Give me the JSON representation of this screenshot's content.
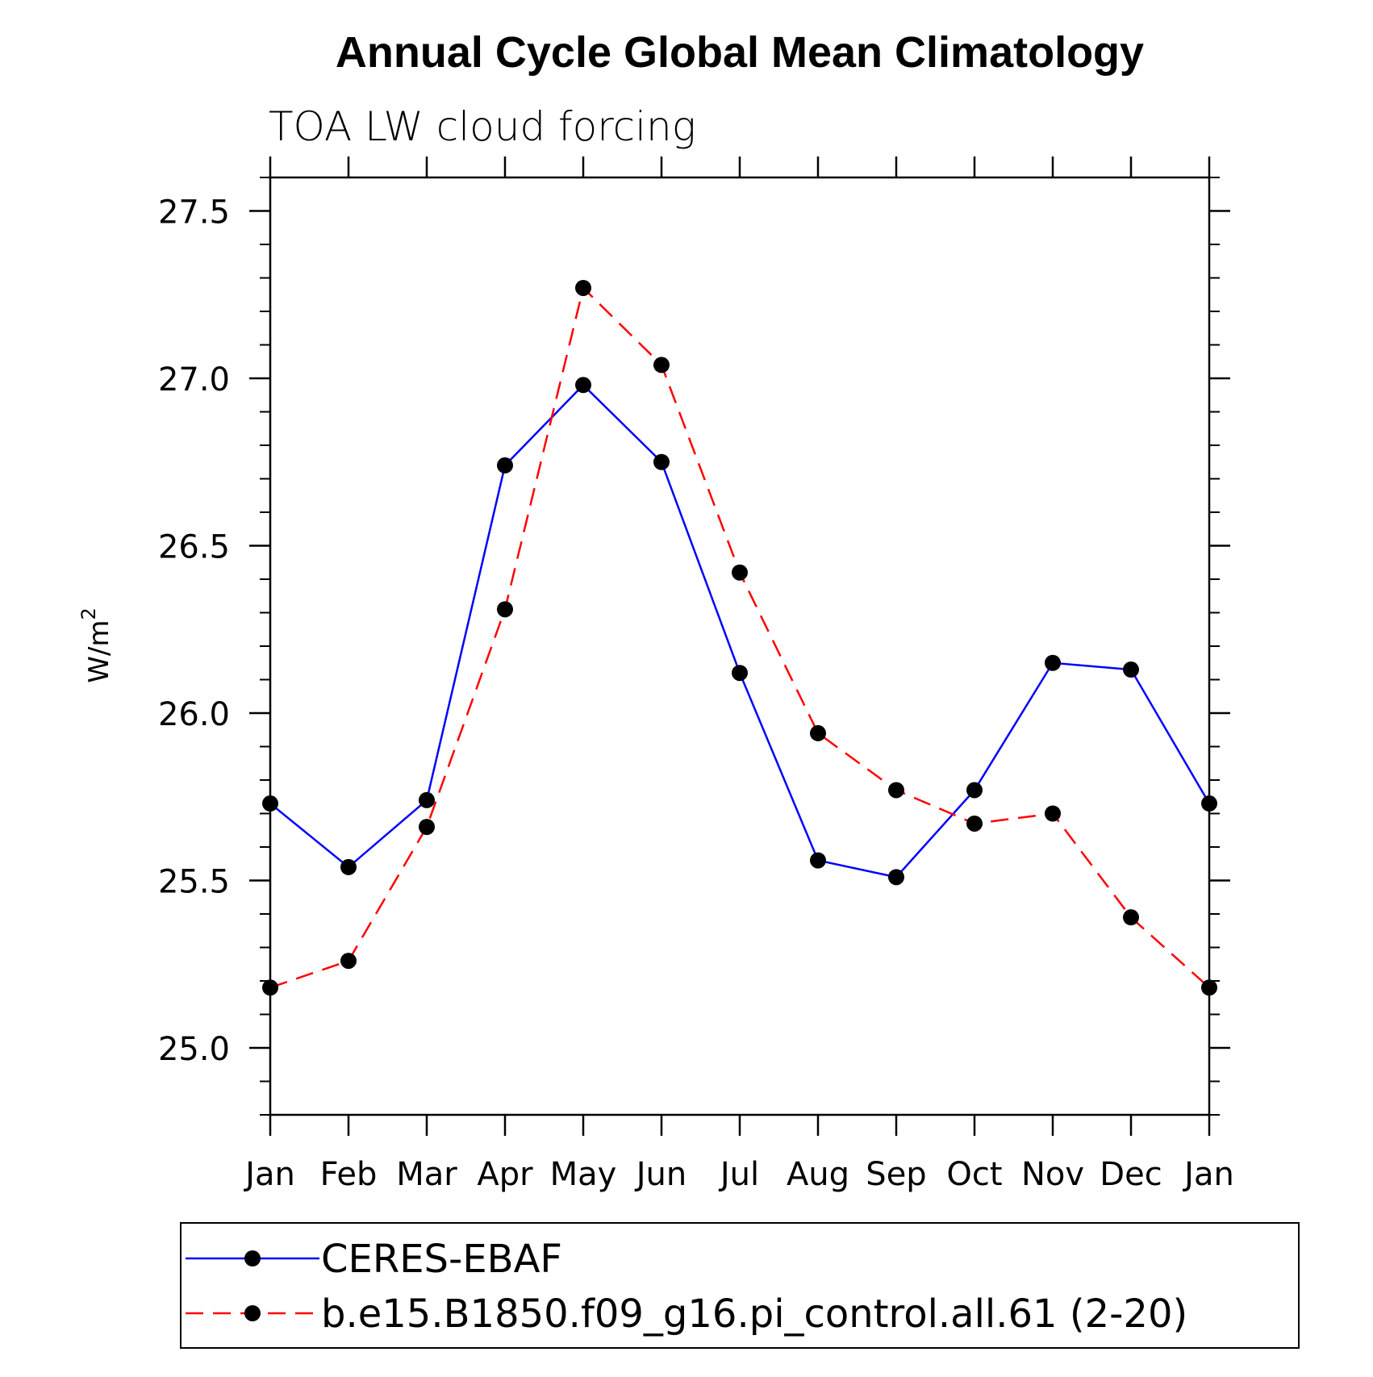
{
  "chart_data": {
    "type": "line",
    "title": "Annual Cycle Global Mean Climatology",
    "subtitle": "TOA LW cloud forcing",
    "xlabel": "",
    "ylabel": "W/m",
    "ylabel_superscript": "2",
    "categories": [
      "Jan",
      "Feb",
      "Mar",
      "Apr",
      "May",
      "Jun",
      "Jul",
      "Aug",
      "Sep",
      "Oct",
      "Nov",
      "Dec",
      "Jan"
    ],
    "ylim": [
      24.8,
      27.6
    ],
    "yticks": [
      25.0,
      25.5,
      26.0,
      26.5,
      27.0,
      27.5
    ],
    "ytick_labels": [
      "25.0",
      "25.5",
      "26.0",
      "26.5",
      "27.0",
      "27.5"
    ],
    "yminor_step": 0.1,
    "grid": false,
    "legend_position": "bottom",
    "series": [
      {
        "name": "CERES-EBAF",
        "color": "#0000ff",
        "dash": "solid",
        "marker": "circle",
        "values": [
          25.73,
          25.54,
          25.74,
          26.74,
          26.98,
          26.75,
          26.12,
          25.56,
          25.51,
          25.77,
          26.15,
          26.13,
          25.73
        ]
      },
      {
        "name": "b.e15.B1850.f09_g16.pi_control.all.61 (2-20)",
        "color": "#ff0000",
        "dash": "dashed",
        "marker": "circle",
        "values": [
          25.18,
          25.26,
          25.66,
          26.31,
          27.27,
          27.04,
          26.42,
          25.94,
          25.77,
          25.67,
          25.7,
          25.39,
          25.18
        ]
      }
    ]
  }
}
